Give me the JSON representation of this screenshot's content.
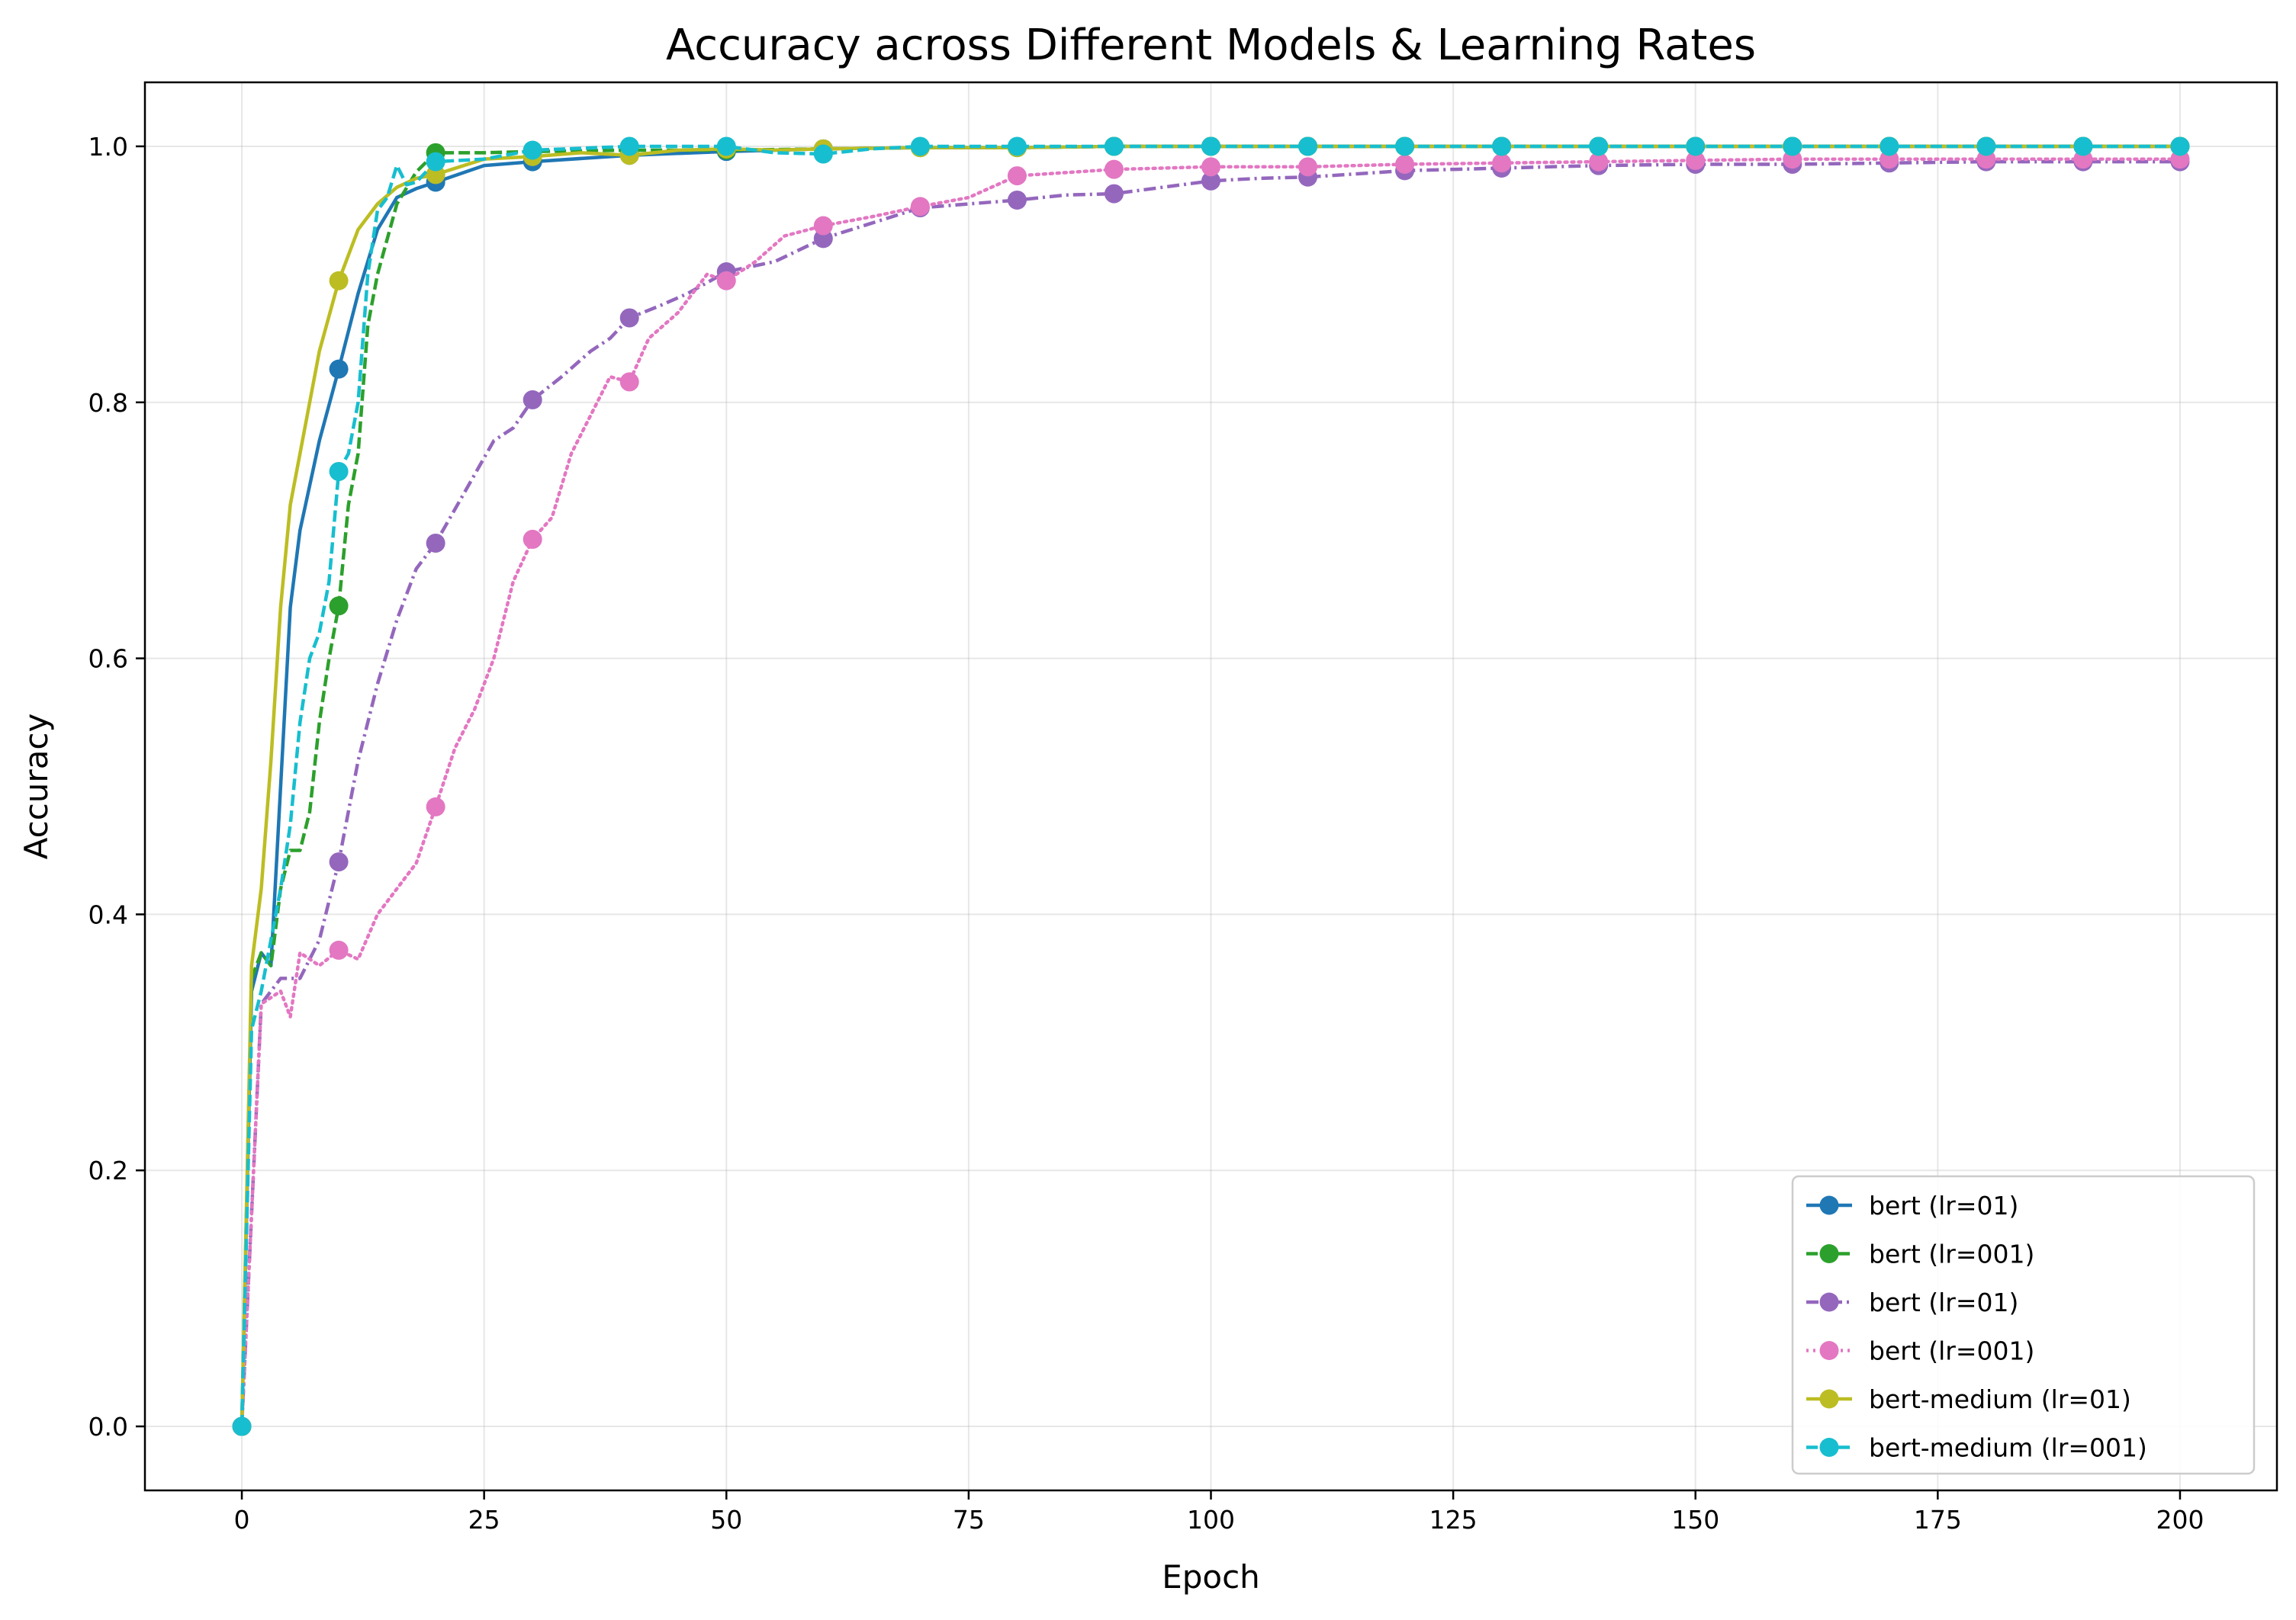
{
  "chart_data": {
    "type": "line",
    "title": "Accuracy across Different Models & Learning Rates",
    "xlabel": "Epoch",
    "ylabel": "Accuracy",
    "xlim": [
      -10,
      210
    ],
    "ylim": [
      -0.05,
      1.05
    ],
    "xticks": [
      0,
      25,
      50,
      75,
      100,
      125,
      150,
      175,
      200
    ],
    "xtick_labels": [
      "0",
      "25",
      "50",
      "75",
      "100",
      "125",
      "150",
      "175",
      "200"
    ],
    "yticks": [
      0.0,
      0.2,
      0.4,
      0.6,
      0.8,
      1.0
    ],
    "ytick_labels": [
      "0.0",
      "0.2",
      "0.4",
      "0.6",
      "0.8",
      "1.0"
    ],
    "grid": true,
    "legend_position": "bottom-right",
    "series": [
      {
        "name": "bert (lr=01)",
        "color": "#1f77b4",
        "dash": "solid",
        "x": [
          0,
          1,
          2,
          3,
          4,
          5,
          6,
          8,
          10,
          12,
          14,
          16,
          18,
          20,
          25,
          30,
          40,
          50,
          60,
          70,
          80,
          90,
          100,
          110,
          120,
          130,
          140,
          150,
          160,
          170,
          180,
          190,
          200
        ],
        "y": [
          0.0,
          0.34,
          0.37,
          0.36,
          0.5,
          0.64,
          0.7,
          0.77,
          0.826,
          0.885,
          0.935,
          0.96,
          0.967,
          0.972,
          0.985,
          0.988,
          0.993,
          0.996,
          0.998,
          0.999,
          0.999,
          1.0,
          1.0,
          1.0,
          1.0,
          1.0,
          1.0,
          1.0,
          1.0,
          1.0,
          1.0,
          1.0,
          1.0
        ],
        "marker_x": [
          0,
          10,
          20,
          30,
          40,
          50,
          60,
          70,
          80,
          90,
          100,
          110,
          120,
          130,
          140,
          150,
          160,
          170,
          180,
          190,
          200
        ],
        "marker_y": [
          0.0,
          0.826,
          0.972,
          0.988,
          0.993,
          0.996,
          0.998,
          0.999,
          0.999,
          1.0,
          1.0,
          1.0,
          1.0,
          1.0,
          1.0,
          1.0,
          1.0,
          1.0,
          1.0,
          1.0,
          1.0
        ]
      },
      {
        "name": "bert (lr=001)",
        "color": "#2ca02c",
        "dash": "dashed",
        "x": [
          0,
          1,
          2,
          3,
          4,
          5,
          6,
          7,
          8,
          9,
          10,
          11,
          12,
          13,
          14,
          16,
          18,
          20,
          25,
          30,
          40,
          50,
          60,
          70,
          80,
          90,
          100,
          110,
          120,
          130,
          140,
          150,
          160,
          170,
          180,
          190,
          200
        ],
        "y": [
          0.0,
          0.35,
          0.37,
          0.36,
          0.42,
          0.45,
          0.45,
          0.48,
          0.55,
          0.6,
          0.641,
          0.72,
          0.76,
          0.86,
          0.9,
          0.955,
          0.98,
          0.995,
          0.995,
          0.996,
          0.997,
          0.997,
          0.998,
          0.999,
          0.999,
          1.0,
          1.0,
          1.0,
          1.0,
          1.0,
          1.0,
          1.0,
          1.0,
          1.0,
          1.0,
          1.0,
          1.0
        ],
        "marker_x": [
          0,
          10,
          20,
          30,
          40,
          50,
          60,
          70,
          80,
          90,
          100,
          110,
          120,
          130,
          140,
          150,
          160,
          170,
          180,
          190,
          200
        ],
        "marker_y": [
          0.0,
          0.641,
          0.995,
          0.996,
          0.997,
          0.997,
          0.998,
          0.999,
          0.999,
          1.0,
          1.0,
          1.0,
          1.0,
          1.0,
          1.0,
          1.0,
          1.0,
          1.0,
          1.0,
          1.0,
          1.0
        ]
      },
      {
        "name": "bert (lr=01)",
        "color": "#9467bd",
        "dash": "dashdot",
        "x": [
          0,
          2,
          4,
          6,
          8,
          10,
          12,
          14,
          16,
          18,
          20,
          23,
          26,
          28,
          30,
          33,
          36,
          38,
          40,
          43,
          46,
          50,
          55,
          60,
          65,
          70,
          75,
          80,
          85,
          90,
          95,
          100,
          105,
          110,
          120,
          130,
          140,
          150,
          160,
          170,
          180,
          190,
          200
        ],
        "y": [
          0.0,
          0.33,
          0.35,
          0.35,
          0.38,
          0.441,
          0.52,
          0.58,
          0.63,
          0.67,
          0.69,
          0.73,
          0.77,
          0.78,
          0.802,
          0.82,
          0.84,
          0.85,
          0.866,
          0.875,
          0.885,
          0.902,
          0.91,
          0.928,
          0.94,
          0.952,
          0.955,
          0.958,
          0.962,
          0.963,
          0.968,
          0.973,
          0.975,
          0.976,
          0.981,
          0.983,
          0.985,
          0.986,
          0.986,
          0.987,
          0.988,
          0.988,
          0.988
        ],
        "marker_x": [
          0,
          10,
          20,
          30,
          40,
          50,
          60,
          70,
          80,
          90,
          100,
          110,
          120,
          130,
          140,
          150,
          160,
          170,
          180,
          190,
          200
        ],
        "marker_y": [
          0.0,
          0.441,
          0.69,
          0.802,
          0.866,
          0.902,
          0.928,
          0.952,
          0.958,
          0.963,
          0.973,
          0.976,
          0.981,
          0.983,
          0.985,
          0.986,
          0.986,
          0.987,
          0.988,
          0.988,
          0.988
        ]
      },
      {
        "name": "bert (lr=001)",
        "color": "#e377c2",
        "dash": "dotted",
        "x": [
          0,
          2,
          4,
          5,
          6,
          8,
          10,
          12,
          14,
          16,
          18,
          20,
          22,
          24,
          26,
          28,
          30,
          32,
          34,
          36,
          38,
          40,
          42,
          45,
          48,
          50,
          53,
          56,
          60,
          65,
          70,
          75,
          80,
          90,
          100,
          110,
          120,
          130,
          140,
          150,
          160,
          170,
          180,
          190,
          200
        ],
        "y": [
          0.0,
          0.33,
          0.34,
          0.32,
          0.37,
          0.36,
          0.372,
          0.365,
          0.4,
          0.42,
          0.44,
          0.484,
          0.53,
          0.56,
          0.6,
          0.66,
          0.693,
          0.71,
          0.76,
          0.79,
          0.82,
          0.816,
          0.85,
          0.87,
          0.9,
          0.895,
          0.91,
          0.93,
          0.938,
          0.945,
          0.953,
          0.96,
          0.977,
          0.982,
          0.984,
          0.984,
          0.986,
          0.987,
          0.988,
          0.989,
          0.99,
          0.99,
          0.99,
          0.99,
          0.99
        ],
        "marker_x": [
          0,
          10,
          20,
          30,
          40,
          50,
          60,
          70,
          80,
          90,
          100,
          110,
          120,
          130,
          140,
          150,
          160,
          170,
          180,
          190,
          200
        ],
        "marker_y": [
          0.0,
          0.372,
          0.484,
          0.693,
          0.816,
          0.895,
          0.938,
          0.953,
          0.977,
          0.982,
          0.984,
          0.984,
          0.986,
          0.987,
          0.988,
          0.989,
          0.99,
          0.99,
          0.99,
          0.99,
          0.99
        ]
      },
      {
        "name": "bert-medium (lr=01)",
        "color": "#bcbd22",
        "dash": "solid",
        "x": [
          0,
          1,
          2,
          3,
          4,
          5,
          6,
          8,
          10,
          12,
          14,
          16,
          18,
          20,
          25,
          30,
          35,
          40,
          45,
          50,
          55,
          60,
          70,
          80,
          90,
          100,
          110,
          120,
          130,
          140,
          150,
          160,
          170,
          180,
          190,
          200
        ],
        "y": [
          0.0,
          0.36,
          0.42,
          0.52,
          0.64,
          0.72,
          0.76,
          0.84,
          0.895,
          0.935,
          0.955,
          0.968,
          0.975,
          0.978,
          0.99,
          0.992,
          0.995,
          0.993,
          0.997,
          0.998,
          0.997,
          0.998,
          0.999,
          0.999,
          1.0,
          1.0,
          1.0,
          1.0,
          1.0,
          1.0,
          1.0,
          1.0,
          1.0,
          1.0,
          1.0,
          1.0
        ],
        "marker_x": [
          0,
          10,
          20,
          30,
          40,
          50,
          60,
          70,
          80,
          90,
          100,
          110,
          120,
          130,
          140,
          150,
          160,
          170,
          180,
          190,
          200
        ],
        "marker_y": [
          0.0,
          0.895,
          0.978,
          0.992,
          0.993,
          0.998,
          0.998,
          0.999,
          0.999,
          1.0,
          1.0,
          1.0,
          1.0,
          1.0,
          1.0,
          1.0,
          1.0,
          1.0,
          1.0,
          1.0,
          1.0
        ]
      },
      {
        "name": "bert-medium (lr=001)",
        "color": "#17becf",
        "dash": "dashed",
        "x": [
          0,
          1,
          2,
          3,
          4,
          5,
          6,
          7,
          8,
          9,
          10,
          11,
          12,
          13,
          14,
          15,
          16,
          17,
          18,
          20,
          25,
          30,
          40,
          50,
          55,
          60,
          65,
          70,
          80,
          90,
          100,
          110,
          120,
          130,
          140,
          150,
          160,
          170,
          180,
          190,
          200
        ],
        "y": [
          0.0,
          0.31,
          0.34,
          0.38,
          0.42,
          0.47,
          0.55,
          0.6,
          0.62,
          0.66,
          0.746,
          0.76,
          0.8,
          0.9,
          0.95,
          0.96,
          0.985,
          0.97,
          0.972,
          0.988,
          0.99,
          0.997,
          1.0,
          1.0,
          0.995,
          0.994,
          0.998,
          1.0,
          1.0,
          1.0,
          1.0,
          1.0,
          1.0,
          1.0,
          1.0,
          1.0,
          1.0,
          1.0,
          1.0,
          1.0,
          1.0
        ],
        "marker_x": [
          0,
          10,
          20,
          30,
          40,
          50,
          60,
          70,
          80,
          90,
          100,
          110,
          120,
          130,
          140,
          150,
          160,
          170,
          180,
          190,
          200
        ],
        "marker_y": [
          0.0,
          0.746,
          0.988,
          0.997,
          1.0,
          1.0,
          0.994,
          1.0,
          1.0,
          1.0,
          1.0,
          1.0,
          1.0,
          1.0,
          1.0,
          1.0,
          1.0,
          1.0,
          1.0,
          1.0,
          1.0
        ]
      }
    ]
  }
}
